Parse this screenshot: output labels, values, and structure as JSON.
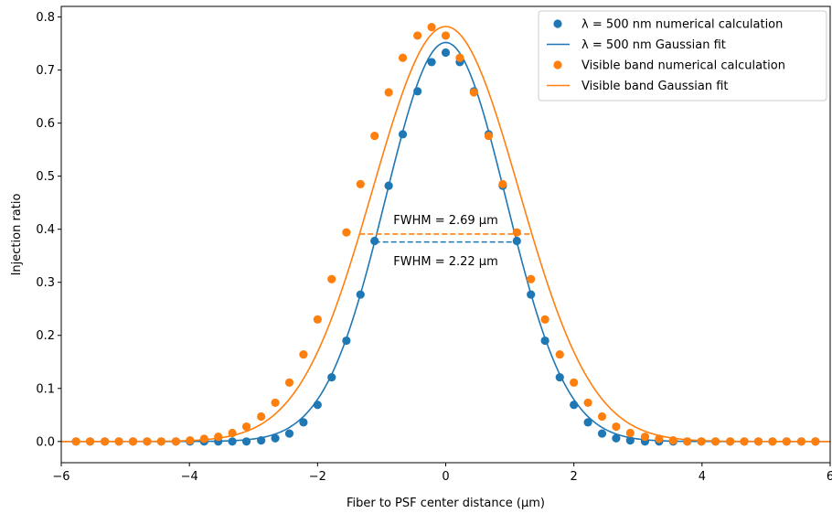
{
  "chart_data": {
    "type": "scatter",
    "title": "",
    "xlabel": "Fiber to PSF center distance (μm)",
    "ylabel": "Injection ratio",
    "xlim": [
      -6,
      6
    ],
    "ylim": [
      -0.04,
      0.82
    ],
    "x_ticks": [
      -6,
      -4,
      -2,
      0,
      2,
      4,
      6
    ],
    "x_tick_labels": [
      "−6",
      "−4",
      "−2",
      "0",
      "2",
      "4",
      "6"
    ],
    "y_ticks": [
      0.0,
      0.1,
      0.2,
      0.3,
      0.4,
      0.5,
      0.6,
      0.7,
      0.8
    ],
    "y_tick_labels": [
      "0.0",
      "0.1",
      "0.2",
      "0.3",
      "0.4",
      "0.5",
      "0.6",
      "0.7",
      "0.8"
    ],
    "grid": false,
    "legend_position": "top-right",
    "series": [
      {
        "name": "λ = 500 nm numerical calculation",
        "kind": "points",
        "color": "#1f77b4",
        "x": [
          -5.77,
          -5.55,
          -5.32,
          -5.1,
          -4.88,
          -4.66,
          -4.44,
          -4.21,
          -3.99,
          -3.77,
          -3.55,
          -3.33,
          -3.11,
          -2.88,
          -2.66,
          -2.44,
          -2.22,
          -2.0,
          -1.78,
          -1.55,
          -1.33,
          -1.11,
          -0.89,
          -0.67,
          -0.44,
          -0.22,
          0.0,
          0.22,
          0.44,
          0.67,
          0.89,
          1.11,
          1.33,
          1.55,
          1.78,
          2.0,
          2.22,
          2.44,
          2.66,
          2.88,
          3.11,
          3.33,
          3.55,
          3.77,
          3.99,
          4.21,
          4.44,
          4.66,
          4.88,
          5.1,
          5.32,
          5.55,
          5.77
        ],
        "y": [
          0.0,
          0.0,
          0.0,
          0.0,
          0.0,
          0.0,
          0.0,
          0.0,
          0.0,
          0.0,
          0.0,
          0.0,
          0.0,
          0.002,
          0.006,
          0.015,
          0.036,
          0.069,
          0.121,
          0.19,
          0.277,
          0.378,
          0.482,
          0.579,
          0.66,
          0.715,
          0.733,
          0.715,
          0.66,
          0.579,
          0.482,
          0.378,
          0.277,
          0.19,
          0.121,
          0.069,
          0.036,
          0.015,
          0.006,
          0.002,
          0.0,
          0.0,
          0.0,
          0.0,
          0.0,
          0.0,
          0.0,
          0.0,
          0.0,
          0.0,
          0.0,
          0.0,
          0.0
        ]
      },
      {
        "name": "λ = 500 nm Gaussian fit",
        "kind": "gaussian",
        "color": "#1f77b4",
        "amplitude": 0.752,
        "center": 0.0,
        "fwhm": 2.22
      },
      {
        "name": "Visible band numerical calculation",
        "kind": "points",
        "color": "#ff7f0e",
        "x": [
          -5.77,
          -5.55,
          -5.32,
          -5.1,
          -4.88,
          -4.66,
          -4.44,
          -4.21,
          -3.99,
          -3.77,
          -3.55,
          -3.33,
          -3.11,
          -2.88,
          -2.66,
          -2.44,
          -2.22,
          -2.0,
          -1.78,
          -1.55,
          -1.33,
          -1.11,
          -0.89,
          -0.67,
          -0.44,
          -0.22,
          0.0,
          0.22,
          0.44,
          0.67,
          0.89,
          1.11,
          1.33,
          1.55,
          1.78,
          2.0,
          2.22,
          2.44,
          2.66,
          2.88,
          3.11,
          3.33,
          3.55,
          3.77,
          3.99,
          4.21,
          4.44,
          4.66,
          4.88,
          5.1,
          5.32,
          5.55,
          5.77
        ],
        "y": [
          0.0,
          0.0,
          0.0,
          0.0,
          0.0,
          0.0,
          0.0,
          0.0,
          0.002,
          0.005,
          0.009,
          0.016,
          0.028,
          0.047,
          0.073,
          0.111,
          0.164,
          0.23,
          0.306,
          0.394,
          0.485,
          0.576,
          0.658,
          0.723,
          0.765,
          0.781,
          0.765,
          0.723,
          0.658,
          0.576,
          0.485,
          0.394,
          0.306,
          0.23,
          0.164,
          0.111,
          0.073,
          0.047,
          0.028,
          0.016,
          0.009,
          0.005,
          0.002,
          0.0,
          0.0,
          0.0,
          0.0,
          0.0,
          0.0,
          0.0,
          0.0,
          0.0,
          0.0
        ]
      },
      {
        "name": "Visible band Gaussian fit",
        "kind": "gaussian",
        "color": "#ff7f0e",
        "amplitude": 0.782,
        "center": 0.0,
        "fwhm": 2.69
      }
    ],
    "annotations": [
      {
        "text": "FWHM = 2.69 μm",
        "color": "#ff7f0e",
        "x_start": -1.345,
        "x_end": 1.345,
        "y": 0.391,
        "label_y": 0.418
      },
      {
        "text": "FWHM = 2.22 μm",
        "color": "#1f77b4",
        "x_start": -1.11,
        "x_end": 1.11,
        "y": 0.376,
        "label_y": 0.34
      }
    ]
  }
}
